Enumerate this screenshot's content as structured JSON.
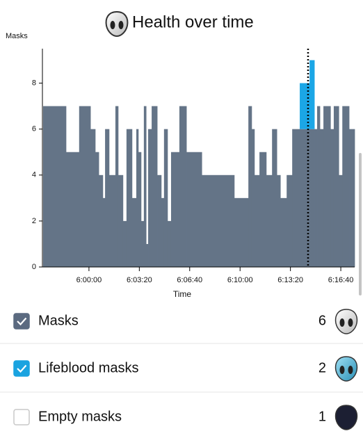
{
  "chart_data": {
    "type": "step-area",
    "title": "Health over time",
    "y_label": "Masks",
    "x_label": "Time",
    "x": [
      21418,
      21509,
      21561,
      21606,
      21625,
      21639,
      21655,
      21664,
      21680,
      21705,
      21716,
      21735,
      21749,
      21771,
      21788,
      21796,
      21807,
      21818,
      21827,
      21835,
      21849,
      21871,
      21887,
      21898,
      21912,
      21926,
      21959,
      21987,
      22048,
      22177,
      22233,
      22246,
      22257,
      22277,
      22304,
      22327,
      22346,
      22360,
      22385,
      22407,
      22437,
      22476,
      22495,
      22506,
      22517,
      22531,
      22559,
      22572,
      22592,
      22606,
      22633
    ],
    "series": [
      {
        "name": "Masks",
        "color": "#647487",
        "values": [
          7,
          5,
          7,
          6,
          5,
          4,
          3,
          6,
          4,
          7,
          4,
          2,
          6,
          3,
          6,
          5,
          2,
          7,
          1,
          6,
          7,
          4,
          3,
          6,
          2,
          5,
          7,
          5,
          4,
          3,
          7,
          6,
          4,
          5,
          4,
          6,
          4,
          3,
          4,
          6,
          6,
          6,
          6,
          7,
          6,
          7,
          6,
          7,
          4,
          7,
          6
        ]
      },
      {
        "name": "Lifeblood masks",
        "color": "#1ba6e6",
        "values": [
          0,
          0,
          0,
          0,
          0,
          0,
          0,
          0,
          0,
          0,
          0,
          0,
          0,
          0,
          0,
          0,
          0,
          0,
          0,
          0,
          0,
          0,
          0,
          0,
          0,
          0,
          0,
          0,
          0,
          0,
          0,
          0,
          0,
          0,
          0,
          0,
          0,
          0,
          0,
          0,
          2,
          3,
          0,
          0,
          0,
          0,
          0,
          0,
          0,
          0,
          0
        ]
      }
    ],
    "stacked": true,
    "xlim": [
      21418,
      22655
    ],
    "xticks": [
      {
        "value": 21600,
        "label": "6:00:00"
      },
      {
        "value": 21800,
        "label": "6:03:20"
      },
      {
        "value": 22000,
        "label": "6:06:40"
      },
      {
        "value": 22200,
        "label": "6:10:00"
      },
      {
        "value": 22400,
        "label": "6:13:20"
      },
      {
        "value": 22600,
        "label": "6:16:40"
      }
    ],
    "ylim": [
      0,
      9.5
    ],
    "yticks": [
      0,
      2,
      4,
      6,
      8
    ],
    "current_time": 22470
  },
  "legend": [
    {
      "label": "Masks",
      "count": 6,
      "checked": true,
      "color": "#5b6a80"
    },
    {
      "label": "Lifeblood masks",
      "count": 2,
      "checked": true,
      "color": "#1aa3e0"
    },
    {
      "label": "Empty masks",
      "count": 1,
      "checked": false,
      "color": "#c8c8c8"
    }
  ]
}
